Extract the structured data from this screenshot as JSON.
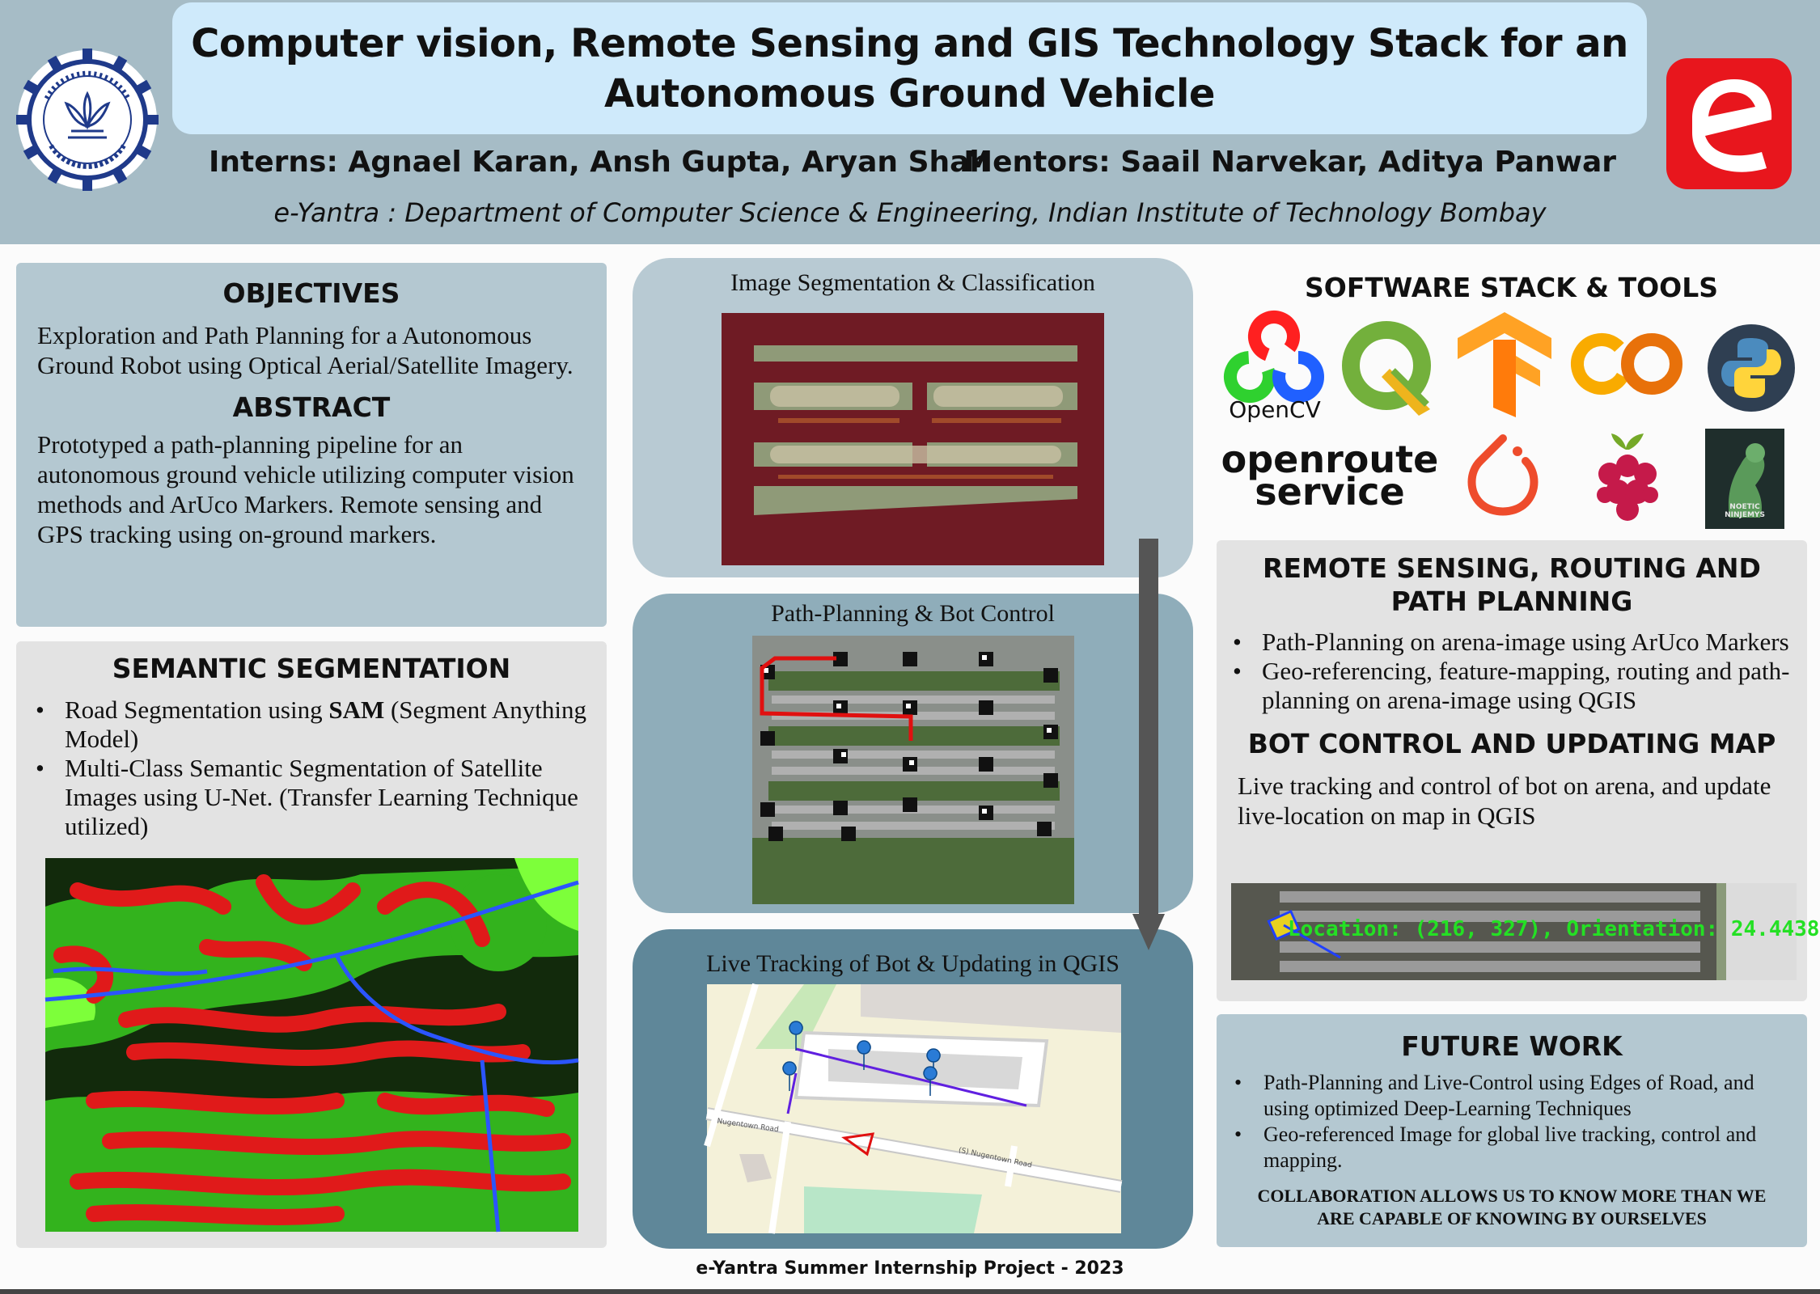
{
  "header": {
    "title_line1": "Computer vision, Remote Sensing and GIS Technology Stack for an",
    "title_line2": "Autonomous Ground Vehicle",
    "interns": "Interns: Agnael Karan, Ansh Gupta, Aryan Shah",
    "mentors": "Mentors: Saail Narvekar, Aditya Panwar",
    "affiliation": "e-Yantra : Department of Computer Science & Engineering, Indian Institute of Technology Bombay",
    "left_logo": "iit-bombay-seal",
    "right_logo": "e-yantra-logo"
  },
  "objectives": {
    "heading": "OBJECTIVES",
    "text": "Exploration and Path Planning for a Autonomous Ground Robot using Optical Aerial/Satellite Imagery."
  },
  "abstract": {
    "heading": "ABSTRACT",
    "text": "Prototyped a path-planning pipeline for an autonomous ground vehicle utilizing computer vision methods and ArUco Markers. Remote sensing and GPS tracking using on-ground markers."
  },
  "semantic_segmentation": {
    "heading": "SEMANTIC SEGMENTATION",
    "bullet1_pre": "Road Segmentation using ",
    "bullet1_bold": "SAM",
    "bullet1_post": " (Segment Anything Model)",
    "bullet2": "Multi-Class Semantic Segmentation of Satellite Images using U-Net. (Transfer Learning Technique utilized)"
  },
  "middle": {
    "panel1_caption": "Image Segmentation &  Classification",
    "panel2_caption": "Path-Planning & Bot Control",
    "panel3_caption": "Live Tracking of Bot & Updating in QGIS",
    "map_label_road1": "Nugentown Road",
    "map_label_road2": "(S)  Nugentown Road"
  },
  "software_stack": {
    "heading": "SOFTWARE STACK & TOOLS",
    "opencv_label": "OpenCV",
    "openroute_label_line1": "openroute",
    "openroute_label_line2": "service",
    "noetic_label_line1": "NOETIC",
    "noetic_label_line2": "NINJEMYS",
    "icons": [
      "opencv-icon",
      "qgis-icon",
      "tensorflow-icon",
      "colab-icon",
      "python-icon",
      "openrouteservice-icon",
      "pytorch-icon",
      "raspberry-pi-icon",
      "ros-noetic-icon"
    ]
  },
  "remote_sensing": {
    "heading_line1": "REMOTE SENSING, ROUTING AND",
    "heading_line2": "PATH PLANNING",
    "bullet1": "Path-Planning on arena-image using ArUco Markers",
    "bullet2": "Geo-referencing, feature-mapping, routing and path-planning on arena-image using QGIS"
  },
  "bot_control": {
    "heading": "BOT CONTROL AND UPDATING MAP",
    "text": "Live tracking and control of bot on arena, and update live-location on map in QGIS",
    "overlay_text": "Location: (216, 327), Orientation: 24.4438"
  },
  "future_work": {
    "heading": "FUTURE WORK",
    "bullet1": "Path-Planning and Live-Control using Edges of Road, and using optimized Deep-Learning Techniques",
    "bullet2": "Geo-referenced Image for global live tracking, control and mapping.",
    "quote_line1": "COLLABORATION ALLOWS US TO KNOW MORE THAN WE",
    "quote_line2": "ARE CAPABLE OF KNOWING BY OURSELVES"
  },
  "footer": {
    "text": "e-Yantra Summer Internship Project - 2023"
  },
  "colors": {
    "header_bg": "#a6bcc6",
    "title_box": "#cfeafb",
    "panel_blue": "#b4c8d1",
    "panel_grey": "#e3e3e3",
    "brand_red": "#e8161d"
  }
}
